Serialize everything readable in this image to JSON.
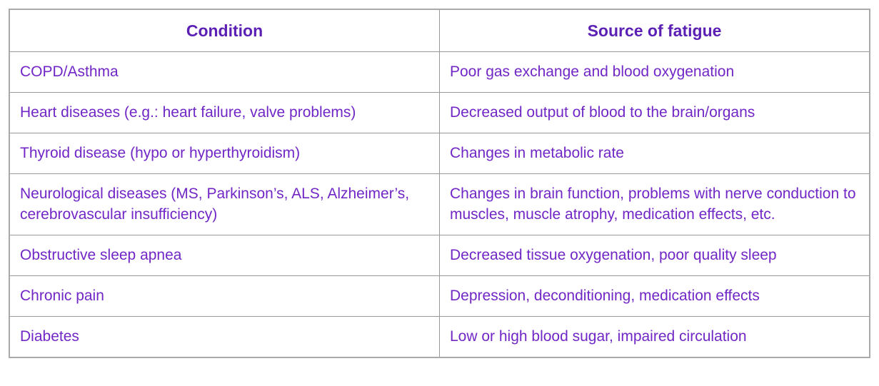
{
  "colors": {
    "header_text": "#5b1fb4",
    "body_text": "#7127c6",
    "border": "#989898",
    "background": "#ffffff"
  },
  "table": {
    "headers": {
      "condition": "Condition",
      "source": "Source of fatigue"
    },
    "rows": [
      {
        "condition": "COPD/Asthma",
        "source": "Poor gas exchange and blood oxygenation"
      },
      {
        "condition": "Heart diseases (e.g.: heart failure, valve problems)",
        "source": "Decreased output of blood to the brain/organs"
      },
      {
        "condition": "Thyroid disease (hypo or hyperthyroidism)",
        "source": "Changes in metabolic rate"
      },
      {
        "condition": "Neurological diseases (MS, Parkinson’s, ALS, Alzheimer’s, cerebrovascular insufficiency)",
        "source": "Changes in brain function, problems with nerve conduction to muscles, muscle atrophy, medication effects, etc."
      },
      {
        "condition": "Obstructive sleep apnea",
        "source": "Decreased tissue oxygenation, poor quality sleep"
      },
      {
        "condition": "Chronic pain",
        "source": "Depression, deconditioning, medication effects"
      },
      {
        "condition": "Diabetes",
        "source": "Low or high blood sugar, impaired circulation"
      }
    ]
  }
}
